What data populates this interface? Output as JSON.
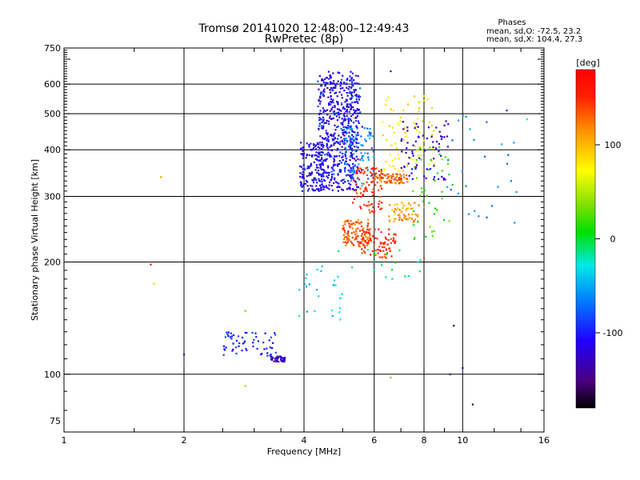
{
  "chart_data": {
    "type": "scatter",
    "title": "Tromsø 20141020 12:48:00–12:49:43",
    "subtitle": "RwPretec (8p)",
    "phase_box": {
      "heading": "Phases",
      "line_o": "mean, sd,O: -72.5, 23.2",
      "line_x": "mean, sd,X: 104.4, 27.3"
    },
    "xlabel": "Frequency [MHz]",
    "ylabel": "Stationary phase Virtual Height [km]",
    "x_scale": "log",
    "y_scale": "log",
    "xlim": [
      1,
      16
    ],
    "ylim": [
      70,
      750
    ],
    "x_ticks": [
      1,
      2,
      4,
      6,
      8,
      10,
      16
    ],
    "x_tick_labels": [
      "1",
      "2",
      "4",
      "6",
      "8",
      "10",
      "16"
    ],
    "x_grid": [
      2,
      4,
      6,
      8,
      10
    ],
    "y_ticks": [
      75,
      100,
      200,
      300,
      400,
      500,
      600,
      750
    ],
    "y_tick_labels": [
      "75",
      "100",
      "200",
      "300",
      "400",
      "500",
      "600",
      "750"
    ],
    "y_grid": [
      100,
      200,
      300,
      400,
      500,
      600
    ],
    "grid": true,
    "colorbar": {
      "label": "[deg]",
      "range": [
        -180,
        180
      ],
      "ticks": [
        100,
        0,
        -100
      ],
      "tick_labels": [
        "100",
        "0",
        "-100"
      ],
      "colormap": "rainbow (black-purple-blue-cyan-green-yellow-red)"
    },
    "points_description": "scattered echo points colored by phase [deg]",
    "point_clusters": [
      {
        "x": [
          4.35,
          5.5
        ],
        "y": [
          310,
          650
        ],
        "phase": -115,
        "count": 500
      },
      {
        "x": [
          3.9,
          4.5
        ],
        "y": [
          310,
          420
        ],
        "phase": -110,
        "count": 150
      },
      {
        "x": [
          4.3,
          5.6
        ],
        "y": [
          330,
          620
        ],
        "phase": -90,
        "count": 120
      },
      {
        "x": [
          5.0,
          6.0
        ],
        "y": [
          320,
          460
        ],
        "phase": -60,
        "count": 80
      },
      {
        "x": [
          5.3,
          6.3
        ],
        "y": [
          270,
          360
        ],
        "phase": 150,
        "count": 90
      },
      {
        "x": [
          6.0,
          7.3
        ],
        "y": [
          325,
          345
        ],
        "phase": 130,
        "count": 70
      },
      {
        "x": [
          5.0,
          5.9
        ],
        "y": [
          220,
          260
        ],
        "phase": 130,
        "count": 120
      },
      {
        "x": [
          5.5,
          6.8
        ],
        "y": [
          205,
          245
        ],
        "phase": 150,
        "count": 80
      },
      {
        "x": [
          6.5,
          7.8
        ],
        "y": [
          255,
          290
        ],
        "phase": 110,
        "count": 60
      },
      {
        "x": [
          6.3,
          8.5
        ],
        "y": [
          350,
          560
        ],
        "phase": 80,
        "count": 80
      },
      {
        "x": [
          7.0,
          9.2
        ],
        "y": [
          330,
          480
        ],
        "phase": -120,
        "count": 70
      },
      {
        "x": [
          7.5,
          9.5
        ],
        "y": [
          230,
          420
        ],
        "phase": 20,
        "count": 45
      },
      {
        "x": [
          9.0,
          14.0
        ],
        "y": [
          250,
          500
        ],
        "phase": -60,
        "count": 25
      },
      {
        "x": [
          4.8,
          8.0
        ],
        "y": [
          180,
          220
        ],
        "phase": -10,
        "count": 20
      },
      {
        "x": [
          3.8,
          5.0
        ],
        "y": [
          140,
          200
        ],
        "phase": -40,
        "count": 25
      },
      {
        "x": [
          3.3,
          3.6
        ],
        "y": [
          108,
          112
        ],
        "phase": -130,
        "count": 40
      },
      {
        "x": [
          2.5,
          3.4
        ],
        "y": [
          112,
          130
        ],
        "phase": -100,
        "count": 60
      }
    ],
    "isolated_points": [
      {
        "x": 1.65,
        "y": 197,
        "phase": 170
      },
      {
        "x": 1.68,
        "y": 175,
        "phase": 90
      },
      {
        "x": 1.75,
        "y": 338,
        "phase": 110
      },
      {
        "x": 2.0,
        "y": 113,
        "phase": -120
      },
      {
        "x": 2.85,
        "y": 148,
        "phase": 30
      },
      {
        "x": 2.85,
        "y": 93,
        "phase": 40
      },
      {
        "x": 6.6,
        "y": 98,
        "phase": 110
      },
      {
        "x": 6.6,
        "y": 650,
        "phase": -130
      },
      {
        "x": 9.3,
        "y": 100,
        "phase": -150
      },
      {
        "x": 10.0,
        "y": 104,
        "phase": -110
      },
      {
        "x": 10.6,
        "y": 83,
        "phase": -160
      },
      {
        "x": 12.9,
        "y": 510,
        "phase": -100
      },
      {
        "x": 14.5,
        "y": 483,
        "phase": -30
      },
      {
        "x": 13.5,
        "y": 255,
        "phase": -60
      },
      {
        "x": 9.5,
        "y": 135,
        "phase": -160
      },
      {
        "x": 8.0,
        "y": 205,
        "phase": 140
      }
    ]
  }
}
